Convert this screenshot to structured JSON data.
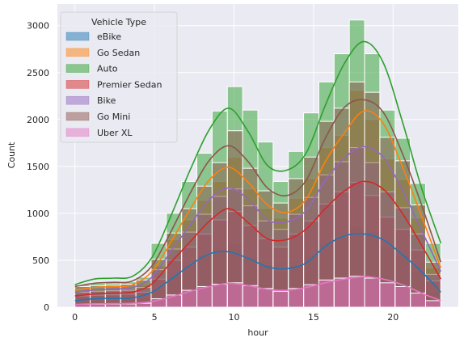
{
  "chart_data": {
    "type": "bar",
    "style": "overlaid histogram with KDE lines",
    "xlabel": "hour",
    "ylabel": "Count",
    "xlim": [
      -1.1,
      24.1
    ],
    "ylim": [
      0,
      3230
    ],
    "xticks": [
      0,
      5,
      10,
      15,
      20
    ],
    "yticks": [
      0,
      500,
      1000,
      1500,
      2000,
      2500,
      3000
    ],
    "grid": true,
    "legend": {
      "title": "Vehicle Type",
      "placement": "top-left"
    },
    "x": [
      0,
      1,
      2,
      3,
      4,
      5,
      6,
      7,
      8,
      9,
      10,
      11,
      12,
      13,
      14,
      15,
      16,
      17,
      18,
      19,
      20,
      21,
      22,
      23
    ],
    "series": [
      {
        "name": "eBike",
        "color": "#1f77b4",
        "values": [
          70,
          75,
          80,
          85,
          100,
          190,
          330,
          450,
          560,
          630,
          680,
          540,
          450,
          390,
          450,
          560,
          690,
          750,
          860,
          800,
          640,
          560,
          390,
          170
        ],
        "kde": [
          70,
          90,
          95,
          100,
          160,
          300,
          450,
          570,
          590,
          520,
          430,
          410,
          470,
          650,
          760,
          780,
          720,
          560,
          380,
          160
        ]
      },
      {
        "name": "Go Sedan",
        "color": "#ff7f0e",
        "values": [
          180,
          190,
          195,
          200,
          240,
          440,
          720,
          930,
          1140,
          1340,
          1600,
          1260,
          1050,
          950,
          1160,
          1370,
          1700,
          1830,
          2310,
          2000,
          1580,
          1360,
          950,
          420
        ],
        "kde": [
          180,
          210,
          220,
          240,
          380,
          700,
          1050,
          1360,
          1490,
          1330,
          1090,
          1010,
          1150,
          1550,
          1860,
          2090,
          1960,
          1500,
          970,
          420
        ]
      },
      {
        "name": "Auto",
        "color": "#2ca02c",
        "values": [
          240,
          255,
          260,
          270,
          320,
          680,
          1000,
          1340,
          1640,
          2090,
          2350,
          2100,
          1760,
          1340,
          1660,
          2070,
          2400,
          2700,
          3060,
          2700,
          2100,
          1800,
          1320,
          680
        ],
        "kde": [
          240,
          300,
          310,
          330,
          530,
          980,
          1470,
          1900,
          2120,
          1870,
          1510,
          1460,
          1640,
          2150,
          2600,
          2830,
          2610,
          1980,
          1270,
          680
        ]
      },
      {
        "name": "Premier Sedan",
        "color": "#d62728",
        "values": [
          120,
          128,
          132,
          138,
          160,
          300,
          500,
          640,
          780,
          930,
          1020,
          870,
          730,
          640,
          780,
          920,
          1100,
          1230,
          1330,
          1190,
          960,
          830,
          610,
          280
        ],
        "kde": [
          120,
          140,
          150,
          160,
          250,
          480,
          700,
          920,
          1050,
          900,
          730,
          720,
          830,
          1050,
          1240,
          1340,
          1260,
          1000,
          660,
          300
        ]
      },
      {
        "name": "Bike",
        "color": "#9467bd",
        "values": [
          160,
          170,
          175,
          180,
          210,
          400,
          620,
          800,
          990,
          1180,
          1260,
          1080,
          920,
          830,
          990,
          1170,
          1410,
          1550,
          1700,
          1540,
          1230,
          1060,
          780,
          350
        ],
        "kde": [
          160,
          185,
          195,
          210,
          320,
          600,
          880,
          1150,
          1270,
          1150,
          930,
          910,
          1030,
          1350,
          1590,
          1710,
          1600,
          1250,
          820,
          380
        ]
      },
      {
        "name": "Go Mini",
        "color": "#8c564b",
        "values": [
          220,
          230,
          235,
          245,
          290,
          510,
          790,
          1050,
          1290,
          1540,
          1880,
          1480,
          1240,
          1110,
          1370,
          1600,
          1980,
          2120,
          2400,
          2290,
          1810,
          1560,
          1090,
          480
        ],
        "kde": [
          220,
          255,
          265,
          280,
          440,
          810,
          1220,
          1570,
          1720,
          1550,
          1270,
          1190,
          1350,
          1800,
          2130,
          2210,
          2080,
          1640,
          1090,
          480
        ]
      },
      {
        "name": "Uber XL",
        "color": "#e377c2",
        "values": [
          30,
          32,
          33,
          35,
          42,
          90,
          130,
          180,
          220,
          245,
          260,
          230,
          200,
          170,
          200,
          240,
          290,
          310,
          330,
          310,
          260,
          220,
          150,
          70
        ],
        "kde": [
          30,
          36,
          38,
          42,
          60,
          110,
          170,
          220,
          255,
          230,
          190,
          180,
          210,
          260,
          300,
          325,
          300,
          240,
          150,
          70
        ]
      }
    ]
  }
}
